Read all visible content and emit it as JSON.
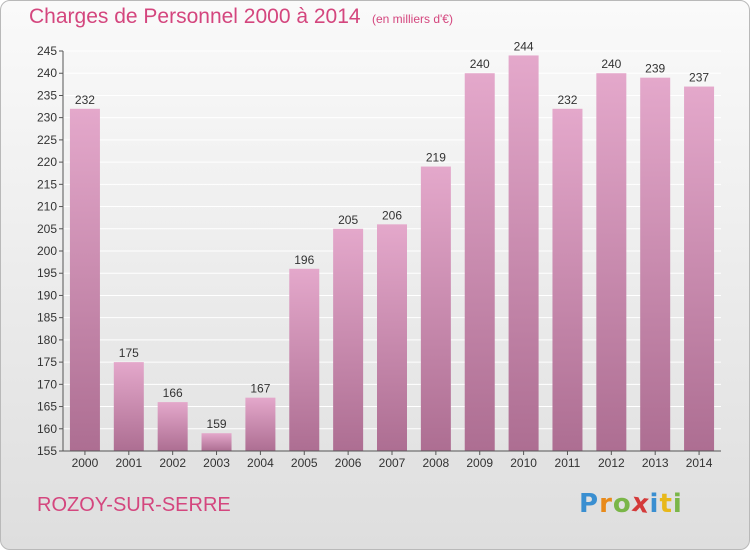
{
  "chart_data": {
    "type": "bar",
    "title": "Charges de Personnel 2000 à 2014",
    "subtitle": "(en milliers d'€)",
    "categories": [
      "2000",
      "2001",
      "2002",
      "2003",
      "2004",
      "2005",
      "2006",
      "2007",
      "2008",
      "2009",
      "2010",
      "2011",
      "2012",
      "2013",
      "2014"
    ],
    "values": [
      232,
      175,
      166,
      159,
      167,
      196,
      205,
      206,
      219,
      240,
      244,
      232,
      240,
      239,
      237
    ],
    "ylim": [
      155,
      245
    ],
    "yticks": [
      155,
      160,
      165,
      170,
      175,
      180,
      185,
      190,
      195,
      200,
      205,
      210,
      215,
      220,
      225,
      230,
      235,
      240,
      245
    ],
    "grid": true,
    "colors": {
      "bar_light": "#e4a8cb",
      "bar_dark": "#ad6e92",
      "grid": "#ffffff",
      "axis": "#555555",
      "text": "#333333"
    }
  },
  "footer": {
    "commune": "ROZOY-SUR-SERRE",
    "logo_letters": [
      {
        "ch": "P",
        "color": "#3a8fd1"
      },
      {
        "ch": "r",
        "color": "#e88a1a"
      },
      {
        "ch": "o",
        "color": "#7ab648"
      },
      {
        "ch": "x",
        "color": "#d43a3a"
      },
      {
        "ch": "i",
        "color": "#3a8fd1"
      },
      {
        "ch": "t",
        "color": "#e8b81a"
      },
      {
        "ch": "i",
        "color": "#7ab648"
      }
    ]
  }
}
